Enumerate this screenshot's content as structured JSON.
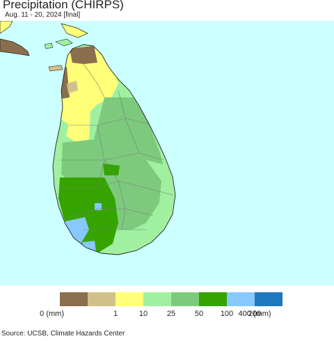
{
  "title": "Precipitation (CHIRPS)",
  "subtitle": "Aug. 11 - 20, 2024 [final]",
  "source": "Source: UCSB, Climate Hazards Center",
  "colors": {
    "ocean": "#ccffff",
    "land_outside": "#8b6a4a",
    "district_border": "#7a7a7a",
    "coast": "#222222"
  },
  "legend": {
    "bins": [
      {
        "color": "#8b6e4e"
      },
      {
        "color": "#d2c08a"
      },
      {
        "color": "#ffff78"
      },
      {
        "color": "#a0f0a0"
      },
      {
        "color": "#7dca7d"
      },
      {
        "color": "#36a400"
      },
      {
        "color": "#87c8ff"
      },
      {
        "color": "#1e78be"
      }
    ],
    "ticks": [
      "0 (mm)",
      "1",
      "10",
      "25",
      "50",
      "100",
      "200",
      "400 (mm)"
    ]
  }
}
